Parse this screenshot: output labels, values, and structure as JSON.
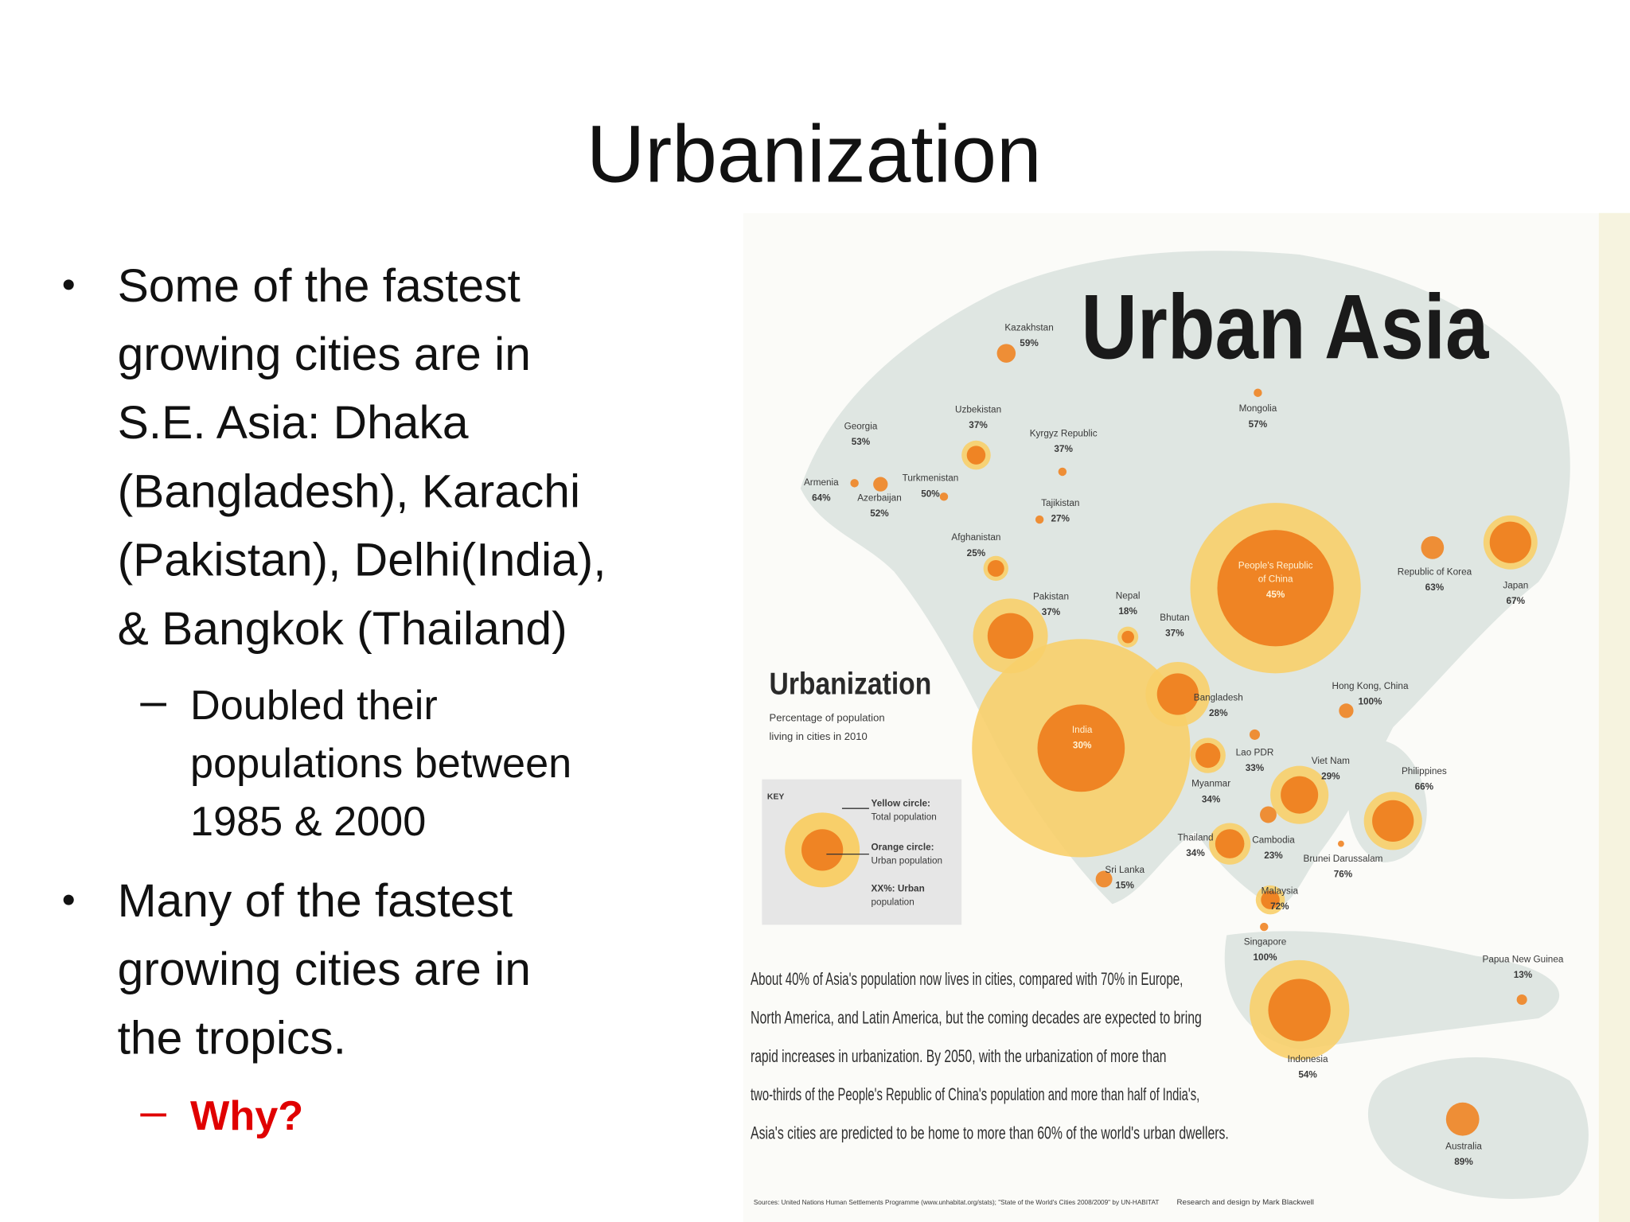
{
  "slide": {
    "title": "Urbanization",
    "bullets": [
      {
        "lines": [
          "Some of the fastest",
          "growing cities are in",
          "S.E. Asia: Dhaka",
          "(Bangladesh), Karachi",
          "(Pakistan), Delhi(India),",
          "& Bangkok (Thailand)"
        ],
        "subs": [
          {
            "lines": [
              "Doubled their",
              "populations between",
              "1985 & 2000"
            ]
          }
        ]
      },
      {
        "lines": [
          "Many of the fastest",
          "growing cities are in",
          "the tropics."
        ],
        "subs": [
          {
            "lines": [
              "Why?"
            ]
          }
        ]
      }
    ]
  },
  "map": {
    "title": "Urban Asia",
    "legend": {
      "title": "Urbanization",
      "caption": [
        "Percentage of population",
        "living in cities in 2010"
      ],
      "key": "KEY",
      "items": [
        {
          "label": "Yellow circle:",
          "desc": "Total population"
        },
        {
          "label": "Orange circle:",
          "desc": "Urban population"
        },
        {
          "label": "XX%: Urban",
          "desc": "population"
        }
      ]
    },
    "countries": [
      {
        "name": [
          "Kazakhstan"
        ],
        "pct": "59%"
      },
      {
        "name": [
          "Georgia"
        ],
        "pct": "53%"
      },
      {
        "name": [
          "Armenia"
        ],
        "pct": "64%"
      },
      {
        "name": [
          "Azerbaijan"
        ],
        "pct": "52%"
      },
      {
        "name": [
          "Uzbekistan"
        ],
        "pct": "37%"
      },
      {
        "name": [
          "Kyrgyz Republic"
        ],
        "pct": "37%"
      },
      {
        "name": [
          "Turkmenistan"
        ],
        "pct": "50%"
      },
      {
        "name": [
          "Tajikistan"
        ],
        "pct": "27%"
      },
      {
        "name": [
          "Afghanistan"
        ],
        "pct": "25%"
      },
      {
        "name": [
          "Pakistan"
        ],
        "pct": "37%"
      },
      {
        "name": [
          "Nepal"
        ],
        "pct": "18%"
      },
      {
        "name": [
          "Bhutan"
        ],
        "pct": "37%"
      },
      {
        "name": [
          "India"
        ],
        "pct": "30%"
      },
      {
        "name": [
          "Bangladesh"
        ],
        "pct": "28%"
      },
      {
        "name": [
          "People's Republic",
          "of China"
        ],
        "pct": "45%"
      },
      {
        "name": [
          "Mongolia"
        ],
        "pct": "57%"
      },
      {
        "name": [
          "Republic of Korea"
        ],
        "pct": "63%"
      },
      {
        "name": [
          "Japan"
        ],
        "pct": "67%"
      },
      {
        "name": [
          "Hong Kong, China"
        ],
        "pct": "100%"
      },
      {
        "name": [
          "Lao PDR"
        ],
        "pct": "33%"
      },
      {
        "name": [
          "Myanmar"
        ],
        "pct": "34%"
      },
      {
        "name": [
          "Viet Nam"
        ],
        "pct": "29%"
      },
      {
        "name": [
          "Philippines"
        ],
        "pct": "66%"
      },
      {
        "name": [
          "Thailand"
        ],
        "pct": "34%"
      },
      {
        "name": [
          "Cambodia"
        ],
        "pct": "23%"
      },
      {
        "name": [
          "Brunei Darussalam"
        ],
        "pct": "76%"
      },
      {
        "name": [
          "Sri Lanka"
        ],
        "pct": "15%"
      },
      {
        "name": [
          "Malaysia"
        ],
        "pct": "72%"
      },
      {
        "name": [
          "Singapore"
        ],
        "pct": "100%"
      },
      {
        "name": [
          "Indonesia"
        ],
        "pct": "54%"
      },
      {
        "name": [
          "Papua New Guinea"
        ],
        "pct": "13%"
      },
      {
        "name": [
          "Australia"
        ],
        "pct": "89%"
      }
    ],
    "note": [
      "About 40% of Asia's population now lives in cities, compared with 70% in Europe,",
      "North America, and Latin America, but the coming decades are expected to bring",
      "rapid increases in urbanization. By 2050, with the urbanization of more than",
      "two-thirds of the People's Republic of China's population and more than half of India's,",
      "Asia's cities are predicted to be home to more than 60% of the world's urban dwellers."
    ],
    "source": "Sources: United Nations Human Settlements Programme (www.unhabitat.org/stats); \"State of the World's Cities 2008/2009\" by UN-HABITAT",
    "credit": "Research and design by Mark Blackwell"
  }
}
